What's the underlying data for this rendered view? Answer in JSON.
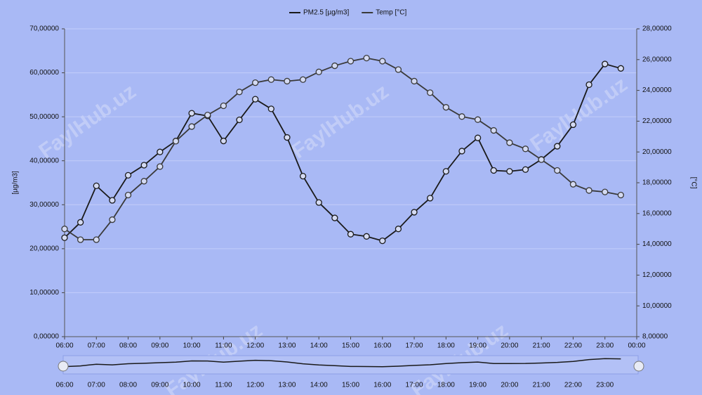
{
  "chart_data": {
    "type": "line",
    "legend_position": "top",
    "grid": true,
    "y_label": "[µg/m3]",
    "y2_label": "[°C]",
    "watermark": "FaylHub.uz",
    "x": [
      6,
      6.5,
      7,
      7.5,
      8,
      8.5,
      9,
      9.5,
      10,
      10.5,
      11,
      11.5,
      12,
      12.5,
      13,
      13.5,
      14,
      14.5,
      15,
      15.5,
      16,
      16.5,
      17,
      17.5,
      18,
      18.5,
      19,
      19.5,
      20,
      20.5,
      21,
      21.5,
      22,
      22.5,
      23,
      23.5
    ],
    "xlim": [
      6,
      24
    ],
    "xticks": [
      {
        "value": 6,
        "label": "06:00"
      },
      {
        "value": 7,
        "label": "07:00"
      },
      {
        "value": 8,
        "label": "08:00"
      },
      {
        "value": 9,
        "label": "09:00"
      },
      {
        "value": 10,
        "label": "10:00"
      },
      {
        "value": 11,
        "label": "11:00"
      },
      {
        "value": 12,
        "label": "12:00"
      },
      {
        "value": 13,
        "label": "13:00"
      },
      {
        "value": 14,
        "label": "14:00"
      },
      {
        "value": 15,
        "label": "15:00"
      },
      {
        "value": 16,
        "label": "16:00"
      },
      {
        "value": 17,
        "label": "17:00"
      },
      {
        "value": 18,
        "label": "18:00"
      },
      {
        "value": 19,
        "label": "19:00"
      },
      {
        "value": 20,
        "label": "20:00"
      },
      {
        "value": 21,
        "label": "21:00"
      },
      {
        "value": 22,
        "label": "22:00"
      },
      {
        "value": 23,
        "label": "23:00"
      },
      {
        "value": 24,
        "label": "00:00"
      }
    ],
    "ylim": [
      0,
      70
    ],
    "yticks": [
      {
        "value": 0,
        "label": "0,00000"
      },
      {
        "value": 10,
        "label": "10,00000"
      },
      {
        "value": 20,
        "label": "20,00000"
      },
      {
        "value": 30,
        "label": "30,00000"
      },
      {
        "value": 40,
        "label": "40,00000"
      },
      {
        "value": 50,
        "label": "50,00000"
      },
      {
        "value": 60,
        "label": "60,00000"
      },
      {
        "value": 70,
        "label": "70,00000"
      }
    ],
    "y2lim": [
      8,
      28
    ],
    "y2ticks": [
      {
        "value": 8,
        "label": "8,00000"
      },
      {
        "value": 10,
        "label": "10,00000"
      },
      {
        "value": 12,
        "label": "12,00000"
      },
      {
        "value": 14,
        "label": "14,00000"
      },
      {
        "value": 16,
        "label": "16,00000"
      },
      {
        "value": 18,
        "label": "18,00000"
      },
      {
        "value": 20,
        "label": "20,00000"
      },
      {
        "value": 22,
        "label": "22,00000"
      },
      {
        "value": 24,
        "label": "24,00000"
      },
      {
        "value": 26,
        "label": "26,00000"
      },
      {
        "value": 28,
        "label": "28,00000"
      }
    ],
    "series": [
      {
        "name": "PM2.5 [µg/m3]",
        "color": "#1a1a1a",
        "axis": "y",
        "values": [
          22.5,
          26,
          34.3,
          31,
          36.7,
          39,
          42,
          44.5,
          50.8,
          50.2,
          44.5,
          49.3,
          54,
          51.8,
          45.3,
          36.5,
          30.5,
          27,
          23.3,
          22.8,
          21.8,
          24.5,
          28.3,
          31.5,
          37.6,
          42.2,
          45.2,
          37.8,
          37.6,
          38,
          40.3,
          43.3,
          48.2,
          57.3,
          62,
          61
        ]
      },
      {
        "name": "Temp [°C]",
        "color": "#3a3a3a",
        "axis": "y2",
        "values": [
          15,
          14.3,
          14.3,
          15.6,
          17.2,
          18.1,
          19.05,
          20.7,
          21.65,
          22.4,
          23,
          23.9,
          24.5,
          24.7,
          24.6,
          24.7,
          25.2,
          25.6,
          25.9,
          26.1,
          25.9,
          25.35,
          24.6,
          23.85,
          22.9,
          22.3,
          22.1,
          21.4,
          20.6,
          20.2,
          19.5,
          18.8,
          17.9,
          17.5,
          17.4,
          17.2
        ]
      }
    ]
  }
}
